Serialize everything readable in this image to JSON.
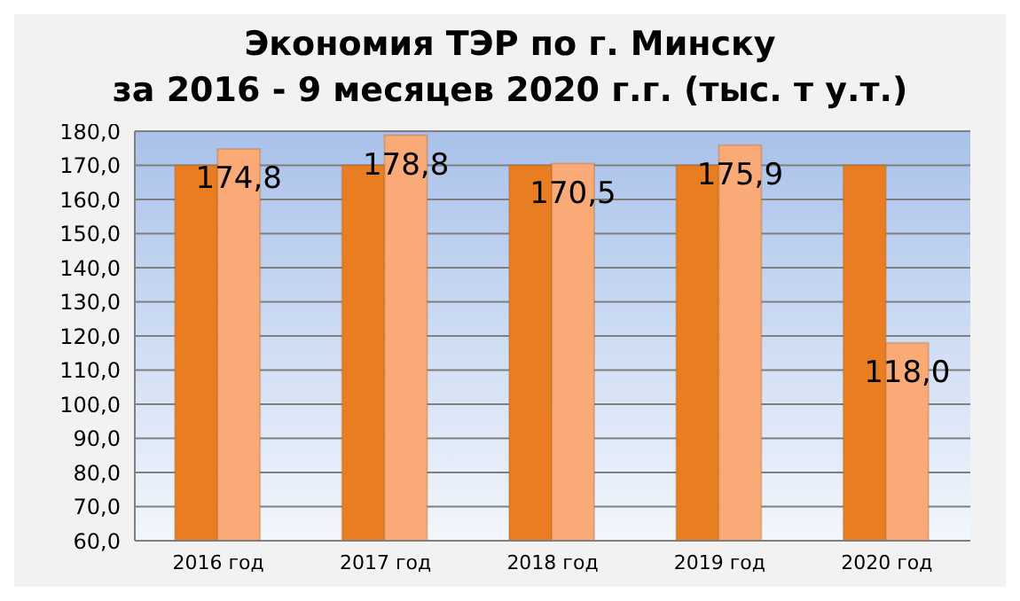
{
  "chart_data": {
    "type": "bar",
    "title": "Экономия ТЭР по г. Минску",
    "subtitle": "за 2016 - 9 месяцев 2020 г.г. (тыс. т у.т.)",
    "categories": [
      "2016 год",
      "2017 год",
      "2018 год",
      "2019 год",
      "2020 год"
    ],
    "series": [
      {
        "color": "#e97d22",
        "values": [
          170,
          170,
          170,
          170,
          170
        ]
      },
      {
        "color": "#f9aa76",
        "values": [
          174.8,
          178.8,
          170.5,
          175.9,
          118.0
        ],
        "value_labels": [
          "174,8",
          "178,8",
          "170,5",
          "175,9",
          "118,0"
        ]
      }
    ],
    "ylim": [
      60,
      180
    ],
    "yticks": [
      {
        "value": 60,
        "label": "60,0"
      },
      {
        "value": 70,
        "label": "70,0"
      },
      {
        "value": 80,
        "label": "80,0"
      },
      {
        "value": 90,
        "label": "90,0"
      },
      {
        "value": 100,
        "label": "100,0"
      },
      {
        "value": 110,
        "label": "110,0"
      },
      {
        "value": 120,
        "label": "120,0"
      },
      {
        "value": 130,
        "label": "130,0"
      },
      {
        "value": 140,
        "label": "140,0"
      },
      {
        "value": 150,
        "label": "150,0"
      },
      {
        "value": 160,
        "label": "160,0"
      },
      {
        "value": 170,
        "label": "170,0"
      },
      {
        "value": 180,
        "label": "180,0"
      }
    ],
    "grid": "y",
    "legend": false
  }
}
